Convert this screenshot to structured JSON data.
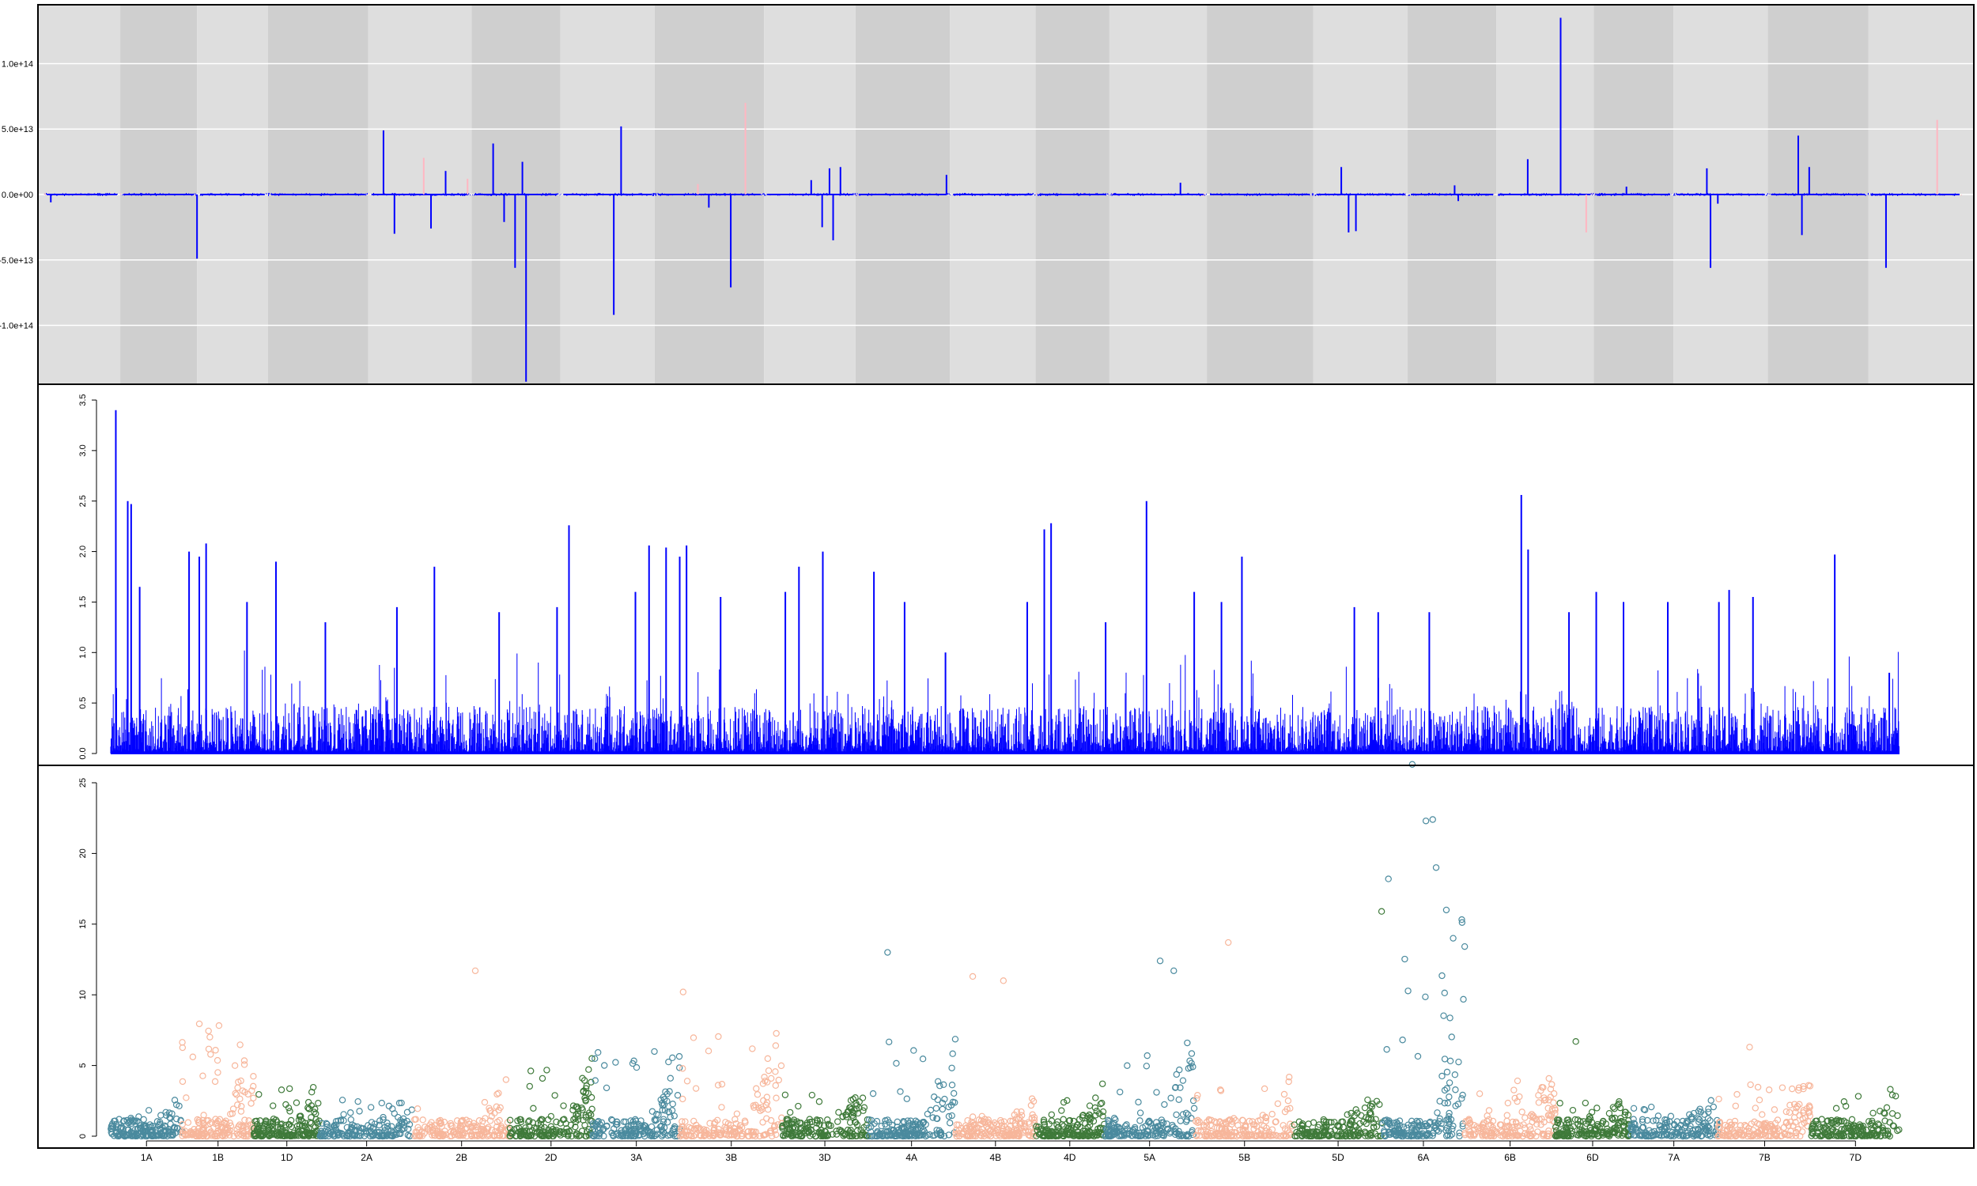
{
  "chart_data": [
    {
      "type": "bar",
      "panel": "top",
      "categories": [
        "1A",
        "1B",
        "1D",
        "2A",
        "2B",
        "2D",
        "3A",
        "3B",
        "3D",
        "4A",
        "4B",
        "4D",
        "5A",
        "5B",
        "5D",
        "6A",
        "6B",
        "6D",
        "7A",
        "7B",
        "7D"
      ],
      "ylim": [
        -145000000000000.0,
        145000000000000.0
      ],
      "yticks": [
        -100000000000000.0,
        -50000000000000.0,
        0,
        50000000000000.0,
        100000000000000.0
      ],
      "ytick_labels": [
        "-1.0e+14",
        "-5.0e+13",
        "0.0e+00",
        "5.0e+13",
        "1.0e+14"
      ],
      "grid": true,
      "background_bands": true,
      "series": [
        {
          "color": "#0000ff",
          "spikes": [
            [
              0.2,
              -6000000000000.0
            ],
            [
              4.2,
              -49000000000000.0
            ],
            [
              9.3,
              49000000000000.0
            ],
            [
              9.6,
              -30000000000000.0
            ],
            [
              10.6,
              -26000000000000.0
            ],
            [
              11.0,
              18000000000000.0
            ],
            [
              12.3,
              39000000000000.0
            ],
            [
              12.6,
              -21000000000000.0
            ],
            [
              12.9,
              -56000000000000.0
            ],
            [
              13.1,
              25000000000000.0
            ],
            [
              13.2,
              -143000000000000.0
            ],
            [
              15.6,
              -92000000000000.0
            ],
            [
              15.8,
              52000000000000.0
            ],
            [
              18.2,
              -10000000000000.0
            ],
            [
              18.8,
              -71000000000000.0
            ],
            [
              21.0,
              11000000000000.0
            ],
            [
              21.3,
              -25000000000000.0
            ],
            [
              21.5,
              20000000000000.0
            ],
            [
              21.6,
              -35000000000000.0
            ],
            [
              21.8,
              21000000000000.0
            ],
            [
              24.7,
              15000000000000.0
            ],
            [
              31.1,
              9000000000000.0
            ],
            [
              35.5,
              21000000000000.0
            ],
            [
              35.7,
              -29000000000000.0
            ],
            [
              35.9,
              -28000000000000.0
            ],
            [
              38.6,
              7000000000000.0
            ],
            [
              38.7,
              -5000000000000.0
            ],
            [
              40.6,
              27000000000000.0
            ],
            [
              41.5,
              135000000000000.0
            ],
            [
              43.3,
              6000000000000.0
            ],
            [
              45.5,
              20000000000000.0
            ],
            [
              45.6,
              -56000000000000.0
            ],
            [
              45.8,
              -7000000000000.0
            ],
            [
              48.0,
              45000000000000.0
            ],
            [
              48.1,
              -31000000000000.0
            ],
            [
              48.3,
              21000000000000.0
            ],
            [
              50.4,
              -56000000000000.0
            ]
          ]
        },
        {
          "color": "#ffb6c1",
          "spikes": [
            [
              10.4,
              28000000000000.0
            ],
            [
              11.6,
              12000000000000.0
            ],
            [
              17.9,
              8000000000000.0
            ],
            [
              19.2,
              70000000000000.0
            ],
            [
              42.2,
              -29000000000000.0
            ],
            [
              51.8,
              57000000000000.0
            ]
          ]
        }
      ]
    },
    {
      "type": "line",
      "panel": "middle",
      "categories": [
        "1A",
        "1B",
        "1D",
        "2A",
        "2B",
        "2D",
        "3A",
        "3B",
        "3D",
        "4A",
        "4B",
        "4D",
        "5A",
        "5B",
        "5D",
        "6A",
        "6B",
        "6D",
        "7A",
        "7B",
        "7D"
      ],
      "ylim": [
        0,
        3.5
      ],
      "yticks": [
        0.0,
        0.5,
        1.0,
        1.5,
        2.0,
        2.5,
        3.0,
        3.5
      ],
      "ytick_labels": [
        "0.0",
        "0.5",
        "1.0",
        "1.5",
        "2.0",
        "2.5",
        "3.0",
        "3.5"
      ],
      "color": "#0000ff",
      "peaks": [
        [
          0.15,
          3.4
        ],
        [
          0.5,
          2.5
        ],
        [
          0.6,
          2.47
        ],
        [
          0.85,
          1.65
        ],
        [
          2.3,
          2.0
        ],
        [
          2.6,
          1.95
        ],
        [
          2.8,
          2.08
        ],
        [
          4.0,
          1.5
        ],
        [
          4.85,
          1.9
        ],
        [
          6.3,
          1.3
        ],
        [
          8.4,
          1.45
        ],
        [
          9.5,
          1.85
        ],
        [
          11.4,
          1.4
        ],
        [
          13.1,
          1.45
        ],
        [
          13.45,
          2.26
        ],
        [
          15.4,
          1.6
        ],
        [
          15.8,
          2.06
        ],
        [
          16.3,
          2.04
        ],
        [
          16.7,
          1.95
        ],
        [
          16.9,
          2.06
        ],
        [
          17.9,
          1.55
        ],
        [
          19.8,
          1.6
        ],
        [
          20.2,
          1.85
        ],
        [
          20.9,
          2.0
        ],
        [
          22.4,
          1.8
        ],
        [
          23.3,
          1.5
        ],
        [
          24.5,
          1.0
        ],
        [
          26.9,
          1.5
        ],
        [
          27.4,
          2.22
        ],
        [
          27.6,
          2.28
        ],
        [
          29.2,
          1.3
        ],
        [
          30.4,
          2.5
        ],
        [
          31.8,
          1.6
        ],
        [
          32.6,
          1.5
        ],
        [
          33.2,
          1.95
        ],
        [
          36.5,
          1.45
        ],
        [
          37.2,
          1.4
        ],
        [
          38.7,
          1.4
        ],
        [
          41.4,
          2.56
        ],
        [
          41.6,
          2.02
        ],
        [
          42.8,
          1.4
        ],
        [
          43.6,
          1.6
        ],
        [
          44.4,
          1.5
        ],
        [
          45.7,
          1.5
        ],
        [
          47.2,
          1.5
        ],
        [
          47.5,
          1.62
        ],
        [
          48.2,
          1.55
        ],
        [
          50.6,
          1.97
        ],
        [
          52.2,
          0.8
        ]
      ]
    },
    {
      "type": "scatter",
      "panel": "bottom",
      "categories": [
        "1A",
        "1B",
        "1D",
        "2A",
        "2B",
        "2D",
        "3A",
        "3B",
        "3D",
        "4A",
        "4B",
        "4D",
        "5A",
        "5B",
        "5D",
        "6A",
        "6B",
        "6D",
        "7A",
        "7B",
        "7D"
      ],
      "ylim": [
        0,
        27
      ],
      "yticks": [
        0,
        5,
        10,
        15,
        20,
        25
      ],
      "ytick_labels": [
        "0",
        "5",
        "10",
        "15",
        "20",
        "25"
      ],
      "colors": [
        "#4a8a9e",
        "#f7b69b",
        "#3f7a3a"
      ],
      "chromosome_peaks": [
        3.5,
        13.6,
        5.8,
        4.4,
        6.0,
        8.0,
        10.2,
        13.0,
        5.0,
        11.3,
        2.8,
        4.5,
        13.7,
        6.0,
        4.5,
        26.3,
        6.6,
        4.0,
        3.5,
        6.3,
        5.4
      ],
      "highlights": [
        [
          10.7,
          11.7
        ],
        [
          16.8,
          10.2
        ],
        [
          22.8,
          13.0
        ],
        [
          25.3,
          11.3
        ],
        [
          26.2,
          11.0
        ],
        [
          30.8,
          12.4
        ],
        [
          31.2,
          11.7
        ],
        [
          32.8,
          13.7
        ],
        [
          37.3,
          15.9
        ],
        [
          37.5,
          18.2
        ],
        [
          38.2,
          26.3
        ],
        [
          38.6,
          22.3
        ],
        [
          38.8,
          22.4
        ],
        [
          38.9,
          19.0
        ],
        [
          39.2,
          16.0
        ],
        [
          39.4,
          14.0
        ],
        [
          43.0,
          6.7
        ],
        [
          48.1,
          6.3
        ]
      ]
    }
  ]
}
